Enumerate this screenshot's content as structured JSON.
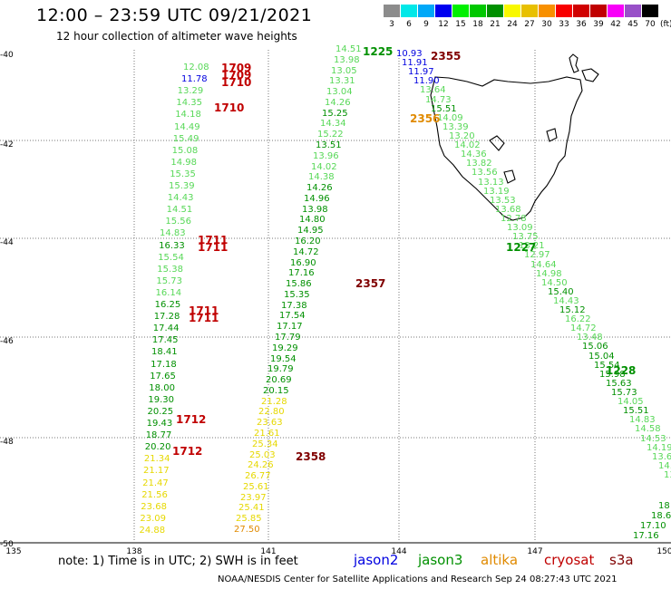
{
  "title": "12:00 – 23:59 UTC 09/21/2021",
  "subtitle": "12 hour collection of altimeter wave heights",
  "colorbar": {
    "colors": [
      "#8c8c8c",
      "#00e8e8",
      "#00a8f8",
      "#0000f0",
      "#00f000",
      "#00c800",
      "#009000",
      "#f8f800",
      "#e8c000",
      "#f89000",
      "#f80000",
      "#d00000",
      "#c00000",
      "#f800f8",
      "#9850c8",
      "#000000"
    ],
    "labels": [
      "3",
      "6",
      "9",
      "12",
      "15",
      "18",
      "21",
      "24",
      "27",
      "30",
      "33",
      "36",
      "39",
      "42",
      "45",
      "70"
    ],
    "unit": "(ft)"
  },
  "axes": {
    "lat_labels": [
      "-40",
      "-42",
      "-44",
      "-46",
      "-48",
      "-50"
    ],
    "lon_labels": [
      "135",
      "138",
      "141",
      "144",
      "147",
      "150"
    ]
  },
  "colors": {
    "jason2": "#0000e0",
    "jason3": "#009000",
    "altika": "#e08a00",
    "cryosat": "#c00000",
    "s3a": "#800000",
    "green_light": "#58d858",
    "yellow": "#e6d800"
  },
  "track1": {
    "entries": [
      {
        "v": "12.08",
        "c": "green_light"
      },
      {
        "v": "11.78",
        "c": "jason2"
      },
      {
        "v": "13.29",
        "c": "green_light"
      },
      {
        "v": "14.35",
        "c": "green_light"
      },
      {
        "v": "14.18",
        "c": "green_light"
      },
      {
        "v": "14.49",
        "c": "green_light"
      },
      {
        "v": "15.49",
        "c": "green_light"
      },
      {
        "v": "15.08",
        "c": "green_light"
      },
      {
        "v": "14.98",
        "c": "green_light"
      },
      {
        "v": "15.35",
        "c": "green_light"
      },
      {
        "v": "15.39",
        "c": "green_light"
      },
      {
        "v": "14.43",
        "c": "green_light"
      },
      {
        "v": "14.51",
        "c": "green_light"
      },
      {
        "v": "15.56",
        "c": "green_light"
      },
      {
        "v": "14.83",
        "c": "green_light"
      },
      {
        "v": "16.33",
        "c": "jason3"
      },
      {
        "v": "15.54",
        "c": "green_light"
      },
      {
        "v": "15.38",
        "c": "green_light"
      },
      {
        "v": "15.73",
        "c": "green_light"
      },
      {
        "v": "16.14",
        "c": "green_light"
      },
      {
        "v": "16.25",
        "c": "jason3"
      },
      {
        "v": "17.28",
        "c": "jason3"
      },
      {
        "v": "17.44",
        "c": "jason3"
      },
      {
        "v": "17.45",
        "c": "jason3"
      },
      {
        "v": "18.41",
        "c": "jason3"
      },
      {
        "v": "17.18",
        "c": "jason3"
      },
      {
        "v": "17.65",
        "c": "jason3"
      },
      {
        "v": "18.00",
        "c": "jason3"
      },
      {
        "v": "19.30",
        "c": "jason3"
      },
      {
        "v": "20.25",
        "c": "jason3"
      },
      {
        "v": "19.43",
        "c": "jason3"
      },
      {
        "v": "18.77",
        "c": "jason3"
      },
      {
        "v": "20.20",
        "c": "jason3"
      },
      {
        "v": "21.34",
        "c": "yellow"
      },
      {
        "v": "21.17",
        "c": "yellow"
      },
      {
        "v": "21.47",
        "c": "yellow"
      },
      {
        "v": "21.56",
        "c": "yellow"
      },
      {
        "v": "23.68",
        "c": "yellow"
      },
      {
        "v": "23.09",
        "c": "yellow"
      },
      {
        "v": "24.88",
        "c": "yellow"
      }
    ],
    "times": [
      "1709",
      "1709",
      "1710",
      "1710",
      "1711",
      "1711",
      "1711",
      "1711",
      "1712",
      "1712"
    ]
  },
  "track2": {
    "entries": [
      {
        "v": "14.51",
        "c": "green_light"
      },
      {
        "v": "13.98",
        "c": "green_light"
      },
      {
        "v": "13.05",
        "c": "green_light"
      },
      {
        "v": "13.31",
        "c": "green_light"
      },
      {
        "v": "13.04",
        "c": "green_light"
      },
      {
        "v": "14.26",
        "c": "green_light"
      },
      {
        "v": "15.25",
        "c": "jason3"
      },
      {
        "v": "14.34",
        "c": "green_light"
      },
      {
        "v": "15.22",
        "c": "green_light"
      },
      {
        "v": "13.51",
        "c": "jason3"
      },
      {
        "v": "13.96",
        "c": "green_light"
      },
      {
        "v": "14.02",
        "c": "green_light"
      },
      {
        "v": "14.38",
        "c": "green_light"
      },
      {
        "v": "14.26",
        "c": "jason3"
      },
      {
        "v": "14.96",
        "c": "jason3"
      },
      {
        "v": "13.98",
        "c": "jason3"
      },
      {
        "v": "14.80",
        "c": "jason3"
      },
      {
        "v": "14.95",
        "c": "jason3"
      },
      {
        "v": "16.20",
        "c": "jason3"
      },
      {
        "v": "14.72",
        "c": "jason3"
      },
      {
        "v": "16.90",
        "c": "jason3"
      },
      {
        "v": "17.16",
        "c": "jason3"
      },
      {
        "v": "15.86",
        "c": "jason3"
      },
      {
        "v": "15.35",
        "c": "jason3"
      },
      {
        "v": "17.38",
        "c": "jason3"
      },
      {
        "v": "17.54",
        "c": "jason3"
      },
      {
        "v": "17.17",
        "c": "jason3"
      },
      {
        "v": "17.79",
        "c": "jason3"
      },
      {
        "v": "19.29",
        "c": "jason3"
      },
      {
        "v": "19.54",
        "c": "jason3"
      },
      {
        "v": "19.79",
        "c": "jason3"
      },
      {
        "v": "20.69",
        "c": "jason3"
      },
      {
        "v": "20.15",
        "c": "jason3"
      },
      {
        "v": "21.28",
        "c": "yellow"
      },
      {
        "v": "22.80",
        "c": "yellow"
      },
      {
        "v": "23.63",
        "c": "yellow"
      },
      {
        "v": "21.61",
        "c": "yellow"
      },
      {
        "v": "25.34",
        "c": "yellow"
      },
      {
        "v": "25.03",
        "c": "yellow"
      },
      {
        "v": "24.26",
        "c": "yellow"
      },
      {
        "v": "26.77",
        "c": "yellow"
      },
      {
        "v": "25.61",
        "c": "yellow"
      },
      {
        "v": "23.97",
        "c": "yellow"
      },
      {
        "v": "25.41",
        "c": "yellow"
      },
      {
        "v": "25.85",
        "c": "yellow"
      },
      {
        "v": "27.50",
        "c": "altika"
      }
    ],
    "times": [
      {
        "t": "2357",
        "c": "s3a"
      },
      {
        "t": "2358",
        "c": "s3a"
      }
    ]
  },
  "track3": {
    "entries": [
      {
        "v": "10.93",
        "c": "jason2"
      },
      {
        "v": "11.91",
        "c": "jason2"
      },
      {
        "v": "11.97",
        "c": "jason2"
      },
      {
        "v": "11.90",
        "c": "jason2"
      },
      {
        "v": "13.64",
        "c": "green_light"
      },
      {
        "v": "14.73",
        "c": "green_light"
      },
      {
        "v": "15.51",
        "c": "jason3"
      },
      {
        "v": "14.09",
        "c": "green_light"
      },
      {
        "v": "13.39",
        "c": "green_light"
      },
      {
        "v": "13.20",
        "c": "green_light"
      },
      {
        "v": "14.02",
        "c": "green_light"
      },
      {
        "v": "14.36",
        "c": "green_light"
      },
      {
        "v": "13.82",
        "c": "green_light"
      },
      {
        "v": "13.56",
        "c": "green_light"
      },
      {
        "v": "13.13",
        "c": "green_light"
      },
      {
        "v": "13.19",
        "c": "green_light"
      },
      {
        "v": "13.53",
        "c": "green_light"
      },
      {
        "v": "13.68",
        "c": "green_light"
      },
      {
        "v": "12.78",
        "c": "green_light"
      },
      {
        "v": "13.09",
        "c": "green_light"
      },
      {
        "v": "13.75",
        "c": "green_light"
      },
      {
        "v": "13.21",
        "c": "green_light"
      },
      {
        "v": "12.97",
        "c": "green_light"
      },
      {
        "v": "14.64",
        "c": "green_light"
      },
      {
        "v": "14.98",
        "c": "green_light"
      },
      {
        "v": "14.50",
        "c": "green_light"
      },
      {
        "v": "15.40",
        "c": "jason3"
      },
      {
        "v": "14.43",
        "c": "green_light"
      },
      {
        "v": "15.12",
        "c": "jason3"
      },
      {
        "v": "16.22",
        "c": "green_light"
      },
      {
        "v": "14.72",
        "c": "green_light"
      },
      {
        "v": "13.48",
        "c": "green_light"
      },
      {
        "v": "15.06",
        "c": "jason3"
      },
      {
        "v": "15.04",
        "c": "jason3"
      },
      {
        "v": "15.54",
        "c": "jason3"
      },
      {
        "v": "15.98",
        "c": "jason3"
      },
      {
        "v": "15.63",
        "c": "jason3"
      },
      {
        "v": "15.73",
        "c": "jason3"
      },
      {
        "v": "14.05",
        "c": "green_light"
      },
      {
        "v": "15.51",
        "c": "jason3"
      },
      {
        "v": "14.83",
        "c": "green_light"
      },
      {
        "v": "14.58",
        "c": "green_light"
      },
      {
        "v": "14.53",
        "c": "green_light"
      },
      {
        "v": "14.19",
        "c": "green_light"
      },
      {
        "v": "13.62",
        "c": "green_light"
      },
      {
        "v": "14.30",
        "c": "green_light"
      },
      {
        "v": "13",
        "c": "green_light"
      }
    ],
    "times": [
      {
        "t": "1225",
        "c": "jason3"
      },
      {
        "t": "2355",
        "c": "s3a"
      },
      {
        "t": "2356",
        "c": "altika"
      },
      {
        "t": "1227",
        "c": "jason3"
      },
      {
        "t": "1228",
        "c": "jason3"
      }
    ]
  },
  "track4": {
    "entries": [
      {
        "v": "18",
        "c": "jason3"
      },
      {
        "v": "18.6",
        "c": "jason3"
      },
      {
        "v": "17.10",
        "c": "jason3"
      },
      {
        "v": "17.16",
        "c": "jason3"
      }
    ]
  },
  "note": "note:  1) Time is in UTC; 2) SWH is in feet",
  "legend": [
    {
      "name": "jason2",
      "c": "jason2"
    },
    {
      "name": "jason3",
      "c": "jason3"
    },
    {
      "name": "altika",
      "c": "altika"
    },
    {
      "name": "cryosat",
      "c": "cryosat"
    },
    {
      "name": "s3a",
      "c": "s3a"
    }
  ],
  "footer": "NOAA/NESDIS Center for Satellite Applications and Research    Sep 24 08:27:43 UTC 2021"
}
